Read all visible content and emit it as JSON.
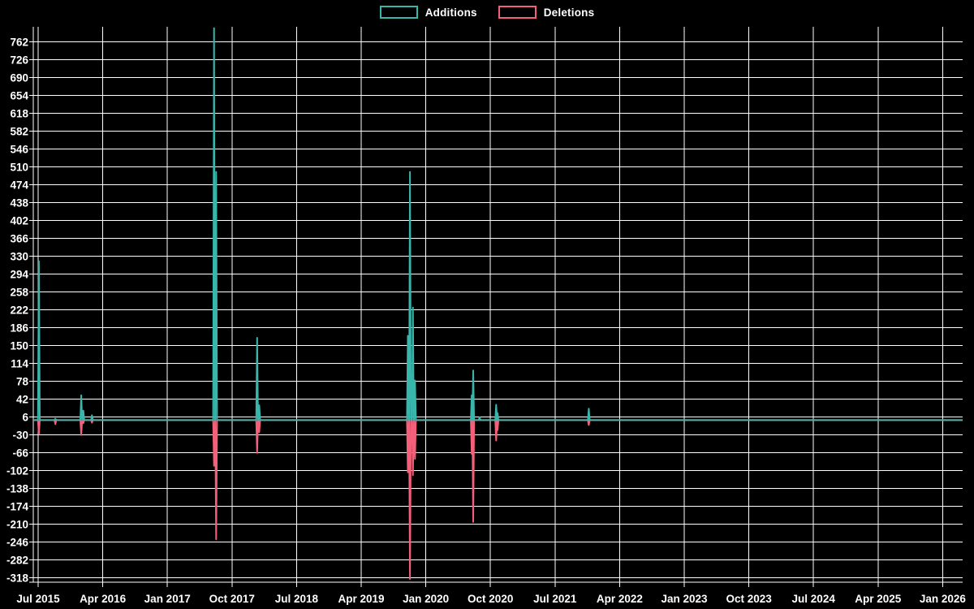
{
  "page": {
    "background": "#000000",
    "text_color": "#ffffff",
    "grid_color": "#ffffff"
  },
  "legend": {
    "items": [
      {
        "label": "Additions",
        "color": "#38b6ac"
      },
      {
        "label": "Deletions",
        "color": "#f4607a"
      }
    ]
  },
  "chart_data": {
    "type": "line",
    "title": "",
    "description": "Weekly code additions (teal spikes above zero) and deletions (pink spikes below zero) over time on a black background with white grid",
    "legend": [
      "Additions",
      "Deletions"
    ],
    "legend_position": "top-center",
    "grid": true,
    "background": "#000000",
    "series_colors": {
      "Additions": "#38b6ac",
      "Deletions": "#f4607a"
    },
    "x_axis": {
      "tick_labels": [
        "Jul 2015",
        "Apr 2016",
        "Jan 2017",
        "Oct 2017",
        "Jul 2018",
        "Apr 2019",
        "Jan 2020",
        "Oct 2020",
        "Jul 2021",
        "Apr 2022",
        "Jan 2023",
        "Oct 2023",
        "Jul 2024",
        "Apr 2025",
        "Jan 2026"
      ],
      "tick_step_months": 9,
      "domain_months": [
        -0.7,
        128.8
      ]
    },
    "y_axis": {
      "ticks": [
        762,
        726,
        690,
        654,
        618,
        582,
        546,
        510,
        474,
        438,
        402,
        366,
        330,
        294,
        258,
        222,
        186,
        150,
        114,
        78,
        42,
        6,
        -30,
        -66,
        -102,
        -138,
        -174,
        -210,
        -246,
        -282,
        -318
      ],
      "tick_step": 36,
      "domain": [
        -327,
        792
      ]
    },
    "baseline": 0,
    "events": [
      {
        "date": "Jul 2015",
        "month": 0.1,
        "additions": 320,
        "deletions": -28
      },
      {
        "date": "Sep 2015",
        "month": 2.4,
        "additions": 3,
        "deletions": -8
      },
      {
        "date": "Jan 2016",
        "month": 6.0,
        "additions": 50,
        "deletions": -30
      },
      {
        "date": "Jan 2016",
        "month": 6.3,
        "additions": 19,
        "deletions": -6
      },
      {
        "date": "Feb 2016",
        "month": 7.5,
        "additions": 10,
        "deletions": -5
      },
      {
        "date": "Aug 2017",
        "month": 24.5,
        "additions": 790,
        "deletions": -92
      },
      {
        "date": "Aug 2017",
        "month": 24.8,
        "additions": 500,
        "deletions": -240
      },
      {
        "date": "Jan 2018",
        "month": 30.5,
        "additions": 166,
        "deletions": -66
      },
      {
        "date": "Jan 2018",
        "month": 30.8,
        "additions": 30,
        "deletions": -24
      },
      {
        "date": "Nov 2019",
        "month": 51.5,
        "additions": 170,
        "deletions": -105
      },
      {
        "date": "Dec 2019",
        "month": 51.8,
        "additions": 500,
        "deletions": -320
      },
      {
        "date": "Dec 2019",
        "month": 52.2,
        "additions": 227,
        "deletions": -111
      },
      {
        "date": "Dec 2019",
        "month": 52.5,
        "additions": 80,
        "deletions": -78
      },
      {
        "date": "Aug 2020",
        "month": 60.4,
        "additions": 50,
        "deletions": -68
      },
      {
        "date": "Aug 2020",
        "month": 60.6,
        "additions": 100,
        "deletions": -205
      },
      {
        "date": "Sep 2020",
        "month": 61.5,
        "additions": 6,
        "deletions": 0
      },
      {
        "date": "Nov 2020",
        "month": 63.8,
        "additions": 31,
        "deletions": -41
      },
      {
        "date": "Nov 2020",
        "month": 64.0,
        "additions": 14,
        "deletions": -20
      },
      {
        "date": "Dec 2021",
        "month": 76.7,
        "additions": 23,
        "deletions": -10
      }
    ]
  }
}
